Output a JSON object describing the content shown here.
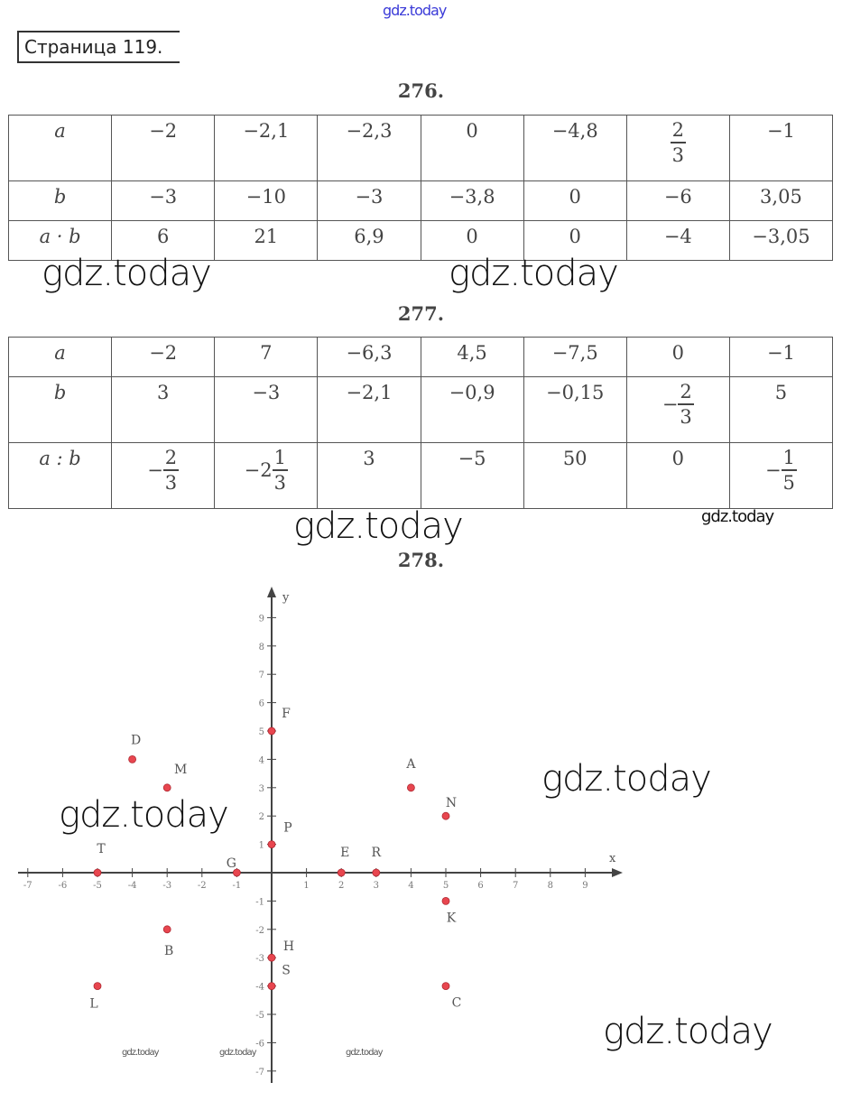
{
  "page_label": "Страница 119.",
  "watermarks": [
    "gdz.today",
    "gdz.today",
    "gdz.today",
    "gdz.today",
    "gdz.today",
    "gdz.today",
    "gdz.today",
    "gdz.today",
    "gdz.today",
    "gdz.today"
  ],
  "ex276": {
    "title": "276.",
    "rows": [
      {
        "header": "a",
        "cells": [
          "−2",
          "−2,1",
          "−2,3",
          "0",
          "−4,8",
          {
            "num": "2",
            "den": "3"
          },
          "−1"
        ]
      },
      {
        "header": "b",
        "cells": [
          "−3",
          "−10",
          "−3",
          "−3,8",
          "0",
          "−6",
          "3,05"
        ]
      },
      {
        "header": "a · b",
        "cells": [
          "6",
          "21",
          "6,9",
          "0",
          "0",
          "−4",
          "−3,05"
        ]
      }
    ]
  },
  "ex277": {
    "title": "277.",
    "rows": [
      {
        "header": "a",
        "cells": [
          "−2",
          "7",
          "−6,3",
          "4,5",
          "−7,5",
          "0",
          "−1"
        ]
      },
      {
        "header": "b",
        "cells": [
          "3",
          "−3",
          "−2,1",
          "−0,9",
          "−0,15",
          {
            "sign": "−",
            "num": "2",
            "den": "3"
          },
          "5"
        ]
      },
      {
        "header": "a : b",
        "cells": [
          {
            "sign": "−",
            "num": "2",
            "den": "3"
          },
          {
            "sign": "−",
            "whole": "2",
            "num": "1",
            "den": "3"
          },
          "3",
          "−5",
          "50",
          "0",
          {
            "sign": "−",
            "num": "1",
            "den": "5"
          }
        ]
      }
    ]
  },
  "ex278": {
    "title": "278.",
    "chart_data": {
      "type": "scatter",
      "xlabel": "x",
      "ylabel": "y",
      "xlim": [
        -7,
        9
      ],
      "ylim": [
        -7,
        9
      ],
      "x_ticks": [
        -7,
        -6,
        -5,
        -4,
        -3,
        -2,
        -1,
        1,
        2,
        3,
        4,
        5,
        6,
        7,
        8,
        9
      ],
      "y_ticks": [
        -7,
        -6,
        -5,
        -4,
        -3,
        -2,
        -1,
        1,
        2,
        3,
        4,
        5,
        6,
        7,
        8,
        9
      ],
      "point_color": "#e8464f",
      "points": [
        {
          "label": "A",
          "x": 4,
          "y": 3
        },
        {
          "label": "B",
          "x": -3,
          "y": -2
        },
        {
          "label": "C",
          "x": 5,
          "y": -4
        },
        {
          "label": "D",
          "x": -4,
          "y": 4
        },
        {
          "label": "E",
          "x": 2,
          "y": 0
        },
        {
          "label": "F",
          "x": 0,
          "y": 5
        },
        {
          "label": "G",
          "x": -1,
          "y": 0
        },
        {
          "label": "H",
          "x": 0,
          "y": -3
        },
        {
          "label": "K",
          "x": 5,
          "y": -1
        },
        {
          "label": "L",
          "x": -5,
          "y": -4
        },
        {
          "label": "M",
          "x": -3,
          "y": 3
        },
        {
          "label": "N",
          "x": 5,
          "y": 2
        },
        {
          "label": "P",
          "x": 0,
          "y": 1
        },
        {
          "label": "R",
          "x": 3,
          "y": 0
        },
        {
          "label": "S",
          "x": 0,
          "y": -4
        },
        {
          "label": "T",
          "x": -5,
          "y": 0
        }
      ]
    }
  }
}
